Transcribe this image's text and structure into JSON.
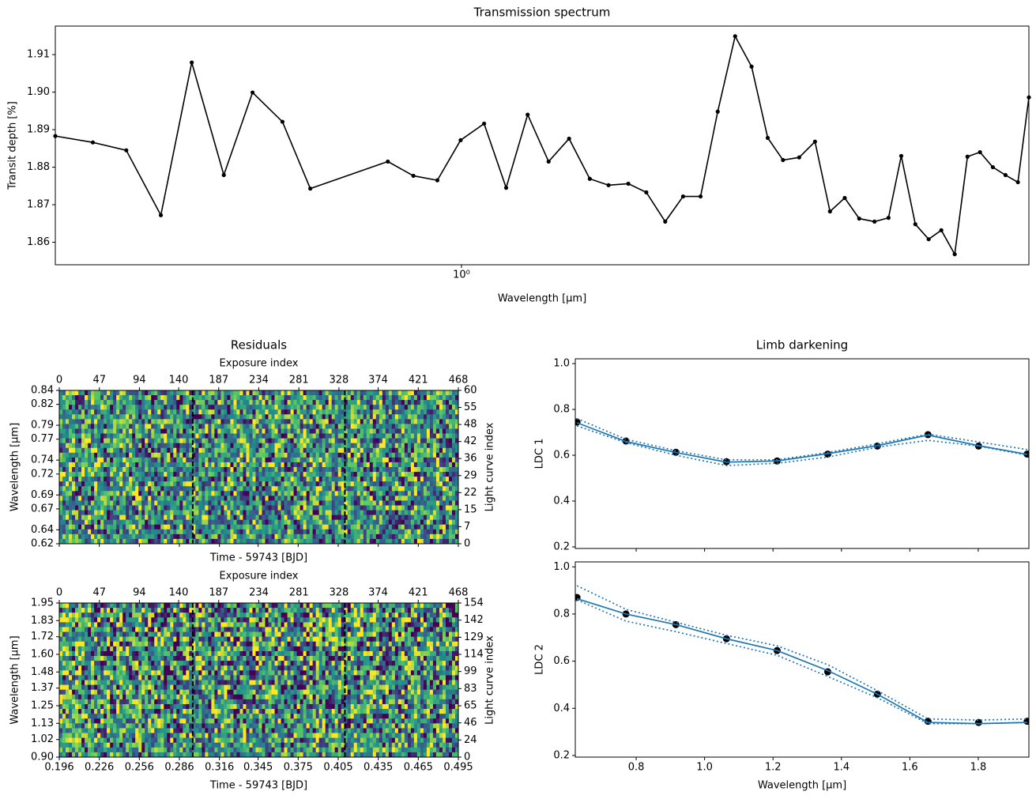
{
  "chart_data": [
    {
      "type": "line",
      "title": "Transmission spectrum",
      "xlabel": "Wavelength [μm]",
      "ylabel": "Transit depth [%]",
      "log_x": true,
      "color": "#000000",
      "x": [
        0.62,
        0.648,
        0.674,
        0.702,
        0.728,
        0.756,
        0.782,
        0.81,
        0.837,
        0.917,
        0.945,
        0.972,
        0.999,
        1.027,
        1.054,
        1.081,
        1.108,
        1.135,
        1.163,
        1.189,
        1.217,
        1.243,
        1.271,
        1.298,
        1.325,
        1.352,
        1.38,
        1.407,
        1.434,
        1.46,
        1.488,
        1.516,
        1.543,
        1.57,
        1.597,
        1.626,
        1.653,
        1.678,
        1.706,
        1.733,
        1.759,
        1.787,
        1.814,
        1.841,
        1.869,
        1.897,
        1.925,
        1.95
      ],
      "values": [
        1.8883,
        1.8866,
        1.8845,
        1.8672,
        1.9079,
        1.8779,
        1.8999,
        1.8921,
        1.8743,
        1.8815,
        1.8777,
        1.8765,
        1.8872,
        1.8916,
        1.8745,
        1.894,
        1.8815,
        1.8876,
        1.8769,
        1.8752,
        1.8756,
        1.8733,
        1.8655,
        1.8722,
        1.8722,
        1.8948,
        1.9149,
        1.9068,
        1.8878,
        1.8819,
        1.8826,
        1.8868,
        1.8682,
        1.8718,
        1.8663,
        1.8655,
        1.8665,
        1.883,
        1.8648,
        1.8608,
        1.8632,
        1.8568,
        1.8828,
        1.884,
        1.88,
        1.8779,
        1.876,
        1.8986
      ],
      "xlim": [
        0.62,
        1.95
      ],
      "xticks": [
        {
          "value": 1,
          "label": "10⁰"
        }
      ],
      "ylim": [
        1.854,
        1.9176
      ],
      "yticks": [
        1.86,
        1.87,
        1.88,
        1.89,
        {
          "value": 1.9,
          "label": "1.90"
        },
        1.91
      ]
    },
    {
      "type": "heatmap",
      "title": "Residuals",
      "colormap": "viridis",
      "top_xlabel": "Exposure index",
      "top_xlim": [
        0,
        468
      ],
      "top_xticks": [
        0,
        47,
        94,
        140,
        187,
        234,
        281,
        328,
        374,
        421,
        468
      ],
      "xlabel": "Time - 59743 [BJD]",
      "xlim": [
        0.196,
        0.495
      ],
      "xticks": [
        0.196,
        0.226,
        0.256,
        0.286,
        0.316,
        0.345,
        0.375,
        0.405,
        0.435,
        0.465,
        0.495
      ],
      "ylabel": "Wavelength [μm]",
      "y2label": "Light curve index",
      "transit_markers": [
        0.296,
        0.41
      ],
      "panels": [
        {
          "xticklabels": false,
          "ylim": [
            0.62,
            0.84
          ],
          "yticks": [
            0.62,
            0.64,
            0.67,
            0.69,
            0.72,
            0.74,
            0.77,
            0.79,
            0.82,
            0.84
          ],
          "y2ticks": [
            0,
            7,
            15,
            22,
            29,
            36,
            42,
            48,
            55,
            60
          ]
        },
        {
          "xticklabels": true,
          "ylim": [
            0.9,
            1.95
          ],
          "yticks": [
            {
              "value": 0.9,
              "label": "0.90"
            },
            1.02,
            1.13,
            1.25,
            1.37,
            1.48,
            {
              "value": 1.6,
              "label": "1.60"
            },
            1.72,
            1.83,
            1.95
          ],
          "y2ticks": [
            0,
            24,
            46,
            65,
            83,
            99,
            114,
            129,
            142,
            154
          ]
        }
      ]
    },
    {
      "type": "line",
      "title": "Limb darkening",
      "xlabel": "Wavelength [μm]",
      "x": [
        0.627,
        0.77,
        0.916,
        1.064,
        1.212,
        1.36,
        1.505,
        1.653,
        1.801,
        1.943
      ],
      "xlim": [
        0.622,
        1.948
      ],
      "xticks": [
        0.8,
        {
          "value": 1,
          "label": "1.0"
        },
        1.2,
        1.4,
        1.6,
        1.8
      ],
      "ylim": [
        0.193,
        1.021
      ],
      "yticks": [
        0.2,
        0.4,
        0.6,
        0.8,
        {
          "value": 1,
          "label": "1.0"
        }
      ],
      "point_color": "#000000",
      "panels": [
        {
          "ylabel": "LDC 1",
          "xticklabels": false,
          "points": [
            0.745,
            0.662,
            0.613,
            0.572,
            0.575,
            0.605,
            0.64,
            0.69,
            0.64,
            0.605
          ],
          "series": [
            {
              "color": "#1f77b4",
              "linestyle": "solid",
              "values": [
                0.742,
                0.66,
                0.612,
                0.57,
                0.575,
                0.607,
                0.642,
                0.688,
                0.642,
                0.604
              ]
            },
            {
              "color": "#1f77b4",
              "linestyle": "dotted",
              "values": [
                0.76,
                0.67,
                0.62,
                0.58,
                0.58,
                0.612,
                0.65,
                0.692,
                0.658,
                0.625
              ]
            },
            {
              "color": "#1f77b4",
              "linestyle": "dotted",
              "values": [
                0.728,
                0.655,
                0.6,
                0.555,
                0.565,
                0.592,
                0.635,
                0.665,
                0.64,
                0.6
              ]
            }
          ]
        },
        {
          "ylabel": "LDC 2",
          "xticklabels": true,
          "points": [
            0.87,
            0.8,
            0.755,
            0.695,
            0.645,
            0.555,
            0.46,
            0.345,
            0.34,
            0.345
          ],
          "series": [
            {
              "color": "#1f77b4",
              "linestyle": "solid",
              "values": [
                0.865,
                0.8,
                0.755,
                0.695,
                0.645,
                0.56,
                0.46,
                0.34,
                0.335,
                0.34
              ]
            },
            {
              "color": "#1f77b4",
              "linestyle": "dotted",
              "values": [
                0.92,
                0.82,
                0.765,
                0.71,
                0.665,
                0.585,
                0.475,
                0.355,
                0.35,
                0.355
              ]
            },
            {
              "color": "#1f77b4",
              "linestyle": "dotted",
              "values": [
                0.86,
                0.77,
                0.725,
                0.675,
                0.625,
                0.535,
                0.445,
                0.335,
                0.335,
                0.34
              ]
            }
          ]
        }
      ]
    }
  ]
}
